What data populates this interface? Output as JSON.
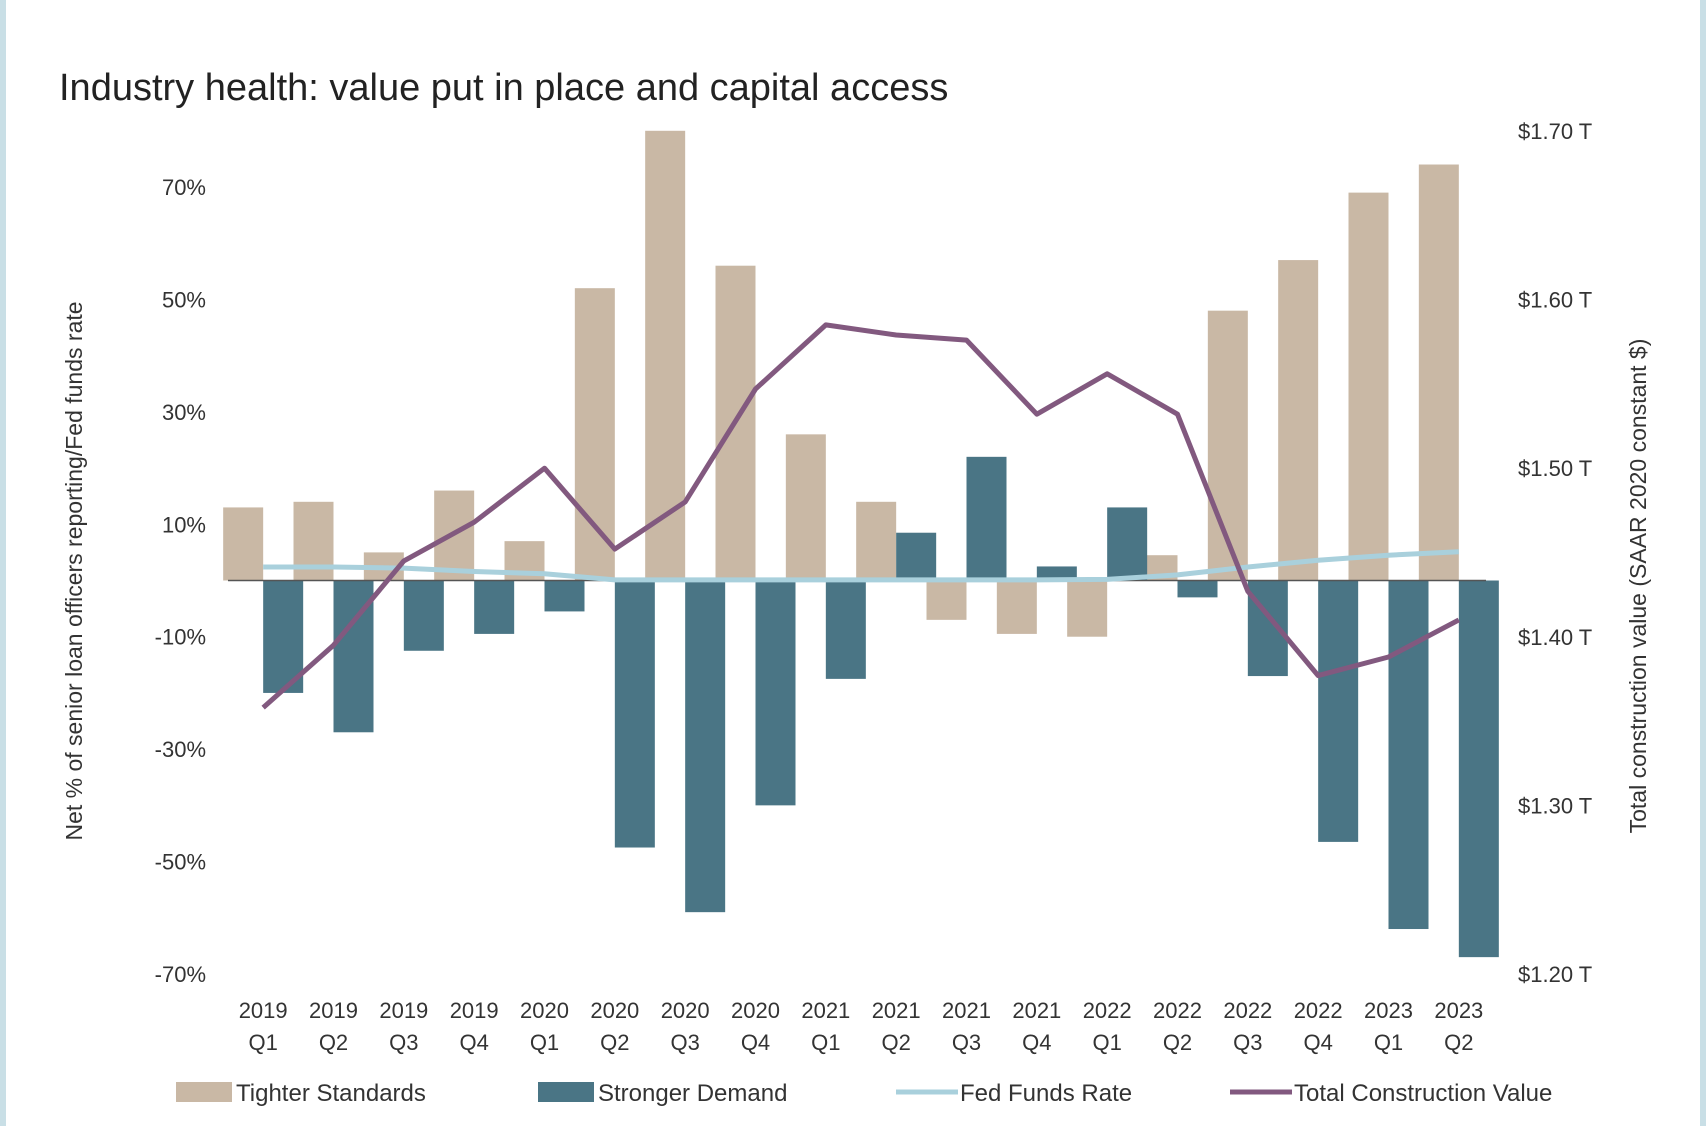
{
  "chart_data": {
    "type": "bar",
    "title": "Industry health: value put in place and capital access",
    "ylabel": "Net % of senior loan officers reporting/Fed funds rate",
    "y2label": "Total construction value (SAAR 2020 constant $)",
    "categories": [
      [
        "2019",
        "Q1"
      ],
      [
        "2019",
        "Q2"
      ],
      [
        "2019",
        "Q3"
      ],
      [
        "2019",
        "Q4"
      ],
      [
        "2020",
        "Q1"
      ],
      [
        "2020",
        "Q2"
      ],
      [
        "2020",
        "Q3"
      ],
      [
        "2020",
        "Q4"
      ],
      [
        "2021",
        "Q1"
      ],
      [
        "2021",
        "Q2"
      ],
      [
        "2021",
        "Q3"
      ],
      [
        "2021",
        "Q4"
      ],
      [
        "2022",
        "Q1"
      ],
      [
        "2022",
        "Q2"
      ],
      [
        "2022",
        "Q3"
      ],
      [
        "2022",
        "Q4"
      ],
      [
        "2023",
        "Q1"
      ],
      [
        "2023",
        "Q2"
      ]
    ],
    "ylim": [
      -70,
      80
    ],
    "yticks": [
      70,
      50,
      30,
      10,
      -10,
      -30,
      -50,
      -70
    ],
    "ytick_labels": [
      "70%",
      "50%",
      "30%",
      "10%",
      "-10%",
      "-30%",
      "-50%",
      "-70%"
    ],
    "y2lim": [
      1.2,
      1.7
    ],
    "y2ticks": [
      1.7,
      1.6,
      1.5,
      1.4,
      1.3,
      1.2
    ],
    "y2tick_labels": [
      "$1.70 T",
      "$1.60 T",
      "$1.50 T",
      "$1.40 T",
      "$1.30 T",
      "$1.20 T"
    ],
    "series": [
      {
        "name": "Tighter Standards",
        "type": "bar",
        "axis": "left",
        "color": "#c9b8a5",
        "values": [
          13,
          14,
          5,
          16,
          7,
          52,
          80,
          56,
          26,
          14,
          -7,
          -9.5,
          -10,
          4.5,
          48,
          57,
          69,
          74
        ]
      },
      {
        "name": "Stronger Demand",
        "type": "bar",
        "axis": "left",
        "color": "#4a7585",
        "values": [
          -20,
          -27,
          -12.5,
          -9.5,
          -5.5,
          -47.5,
          -59,
          -40,
          -17.5,
          8.5,
          22,
          2.5,
          13,
          -3,
          -17,
          -46.5,
          -62,
          -67
        ]
      },
      {
        "name": "Fed Funds Rate",
        "type": "line",
        "axis": "left",
        "color": "#a9d0dc",
        "values": [
          2.4,
          2.4,
          2.2,
          1.6,
          1.2,
          0.1,
          0.1,
          0.1,
          0.1,
          0.1,
          0.1,
          0.1,
          0.2,
          1.0,
          2.4,
          3.6,
          4.5,
          5.1
        ]
      },
      {
        "name": "Total Construction Value",
        "type": "line",
        "axis": "right",
        "color": "#82597f",
        "values": [
          1.358,
          1.395,
          1.445,
          1.468,
          1.5,
          1.452,
          1.48,
          1.547,
          1.585,
          1.579,
          1.576,
          1.532,
          1.556,
          1.532,
          1.427,
          1.377,
          1.388,
          1.41
        ]
      }
    ],
    "legend_position": "bottom"
  }
}
